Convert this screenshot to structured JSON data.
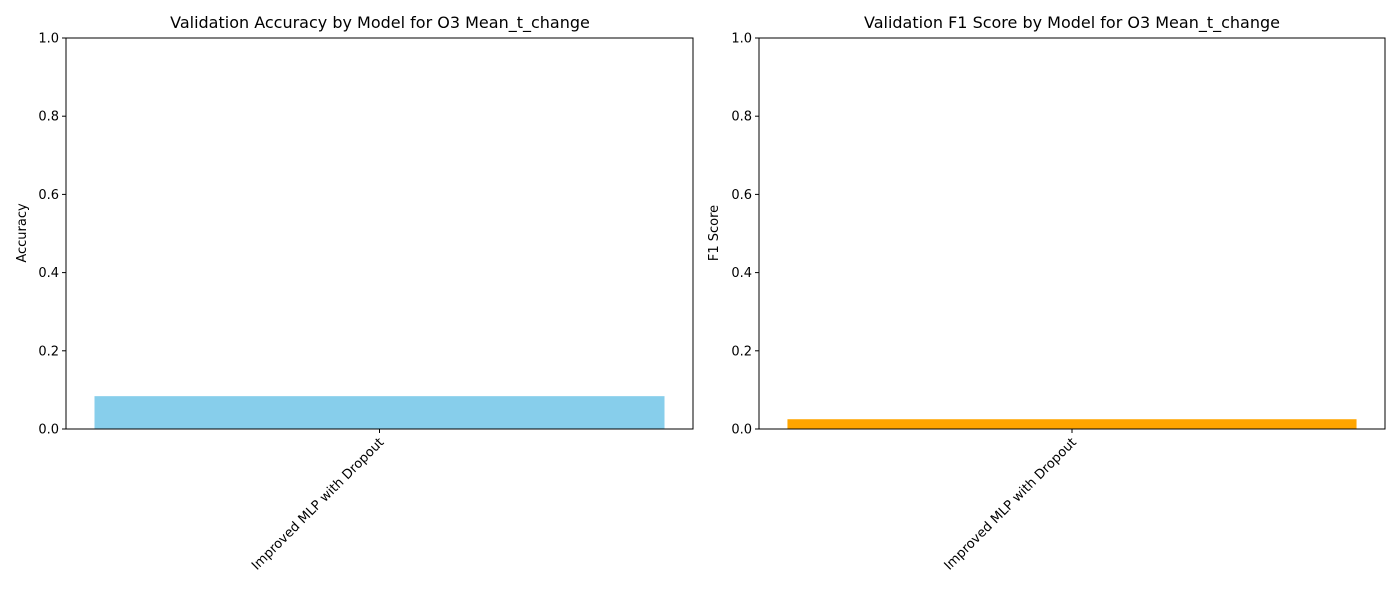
{
  "chart_data": [
    {
      "type": "bar",
      "title": "Validation Accuracy by Model for O3 Mean_t_change",
      "xlabel": "",
      "ylabel": "Accuracy",
      "categories": [
        "Improved MLP with Dropout"
      ],
      "values": [
        0.084
      ],
      "ylim": [
        0,
        1
      ],
      "yticks": [
        "0.0",
        "0.2",
        "0.4",
        "0.6",
        "0.8",
        "1.0"
      ],
      "bar_color": "#87ceeb",
      "grid": false,
      "xtick_rotation_deg": 45
    },
    {
      "type": "bar",
      "title": "Validation F1 Score by Model for O3 Mean_t_change",
      "xlabel": "",
      "ylabel": "F1 Score",
      "categories": [
        "Improved MLP with Dropout"
      ],
      "values": [
        0.025
      ],
      "ylim": [
        0,
        1
      ],
      "yticks": [
        "0.0",
        "0.2",
        "0.4",
        "0.6",
        "0.8",
        "1.0"
      ],
      "bar_color": "#ffa500",
      "grid": false,
      "xtick_rotation_deg": 45
    }
  ]
}
